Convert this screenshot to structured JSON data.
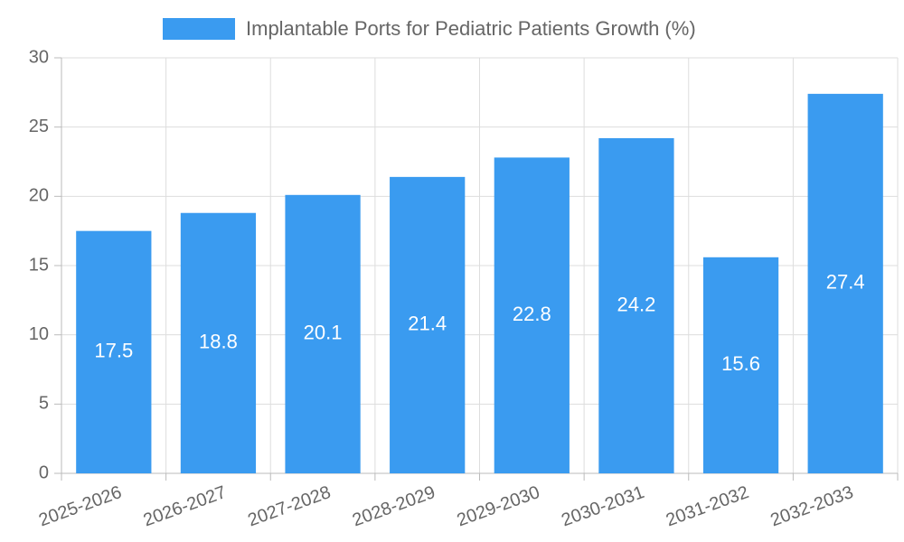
{
  "chart_data": {
    "type": "bar",
    "categories": [
      "2025-2026",
      "2026-2027",
      "2027-2028",
      "2028-2029",
      "2029-2030",
      "2030-2031",
      "2031-2032",
      "2032-2033"
    ],
    "series": [
      {
        "name": "Implantable Ports for Pediatric Patients Growth (%)",
        "values": [
          17.5,
          18.8,
          20.1,
          21.4,
          22.8,
          24.2,
          15.6,
          27.4
        ],
        "color": "#3a9bf0"
      }
    ],
    "ylim": [
      0,
      30
    ],
    "yticks": [
      0,
      5,
      10,
      15,
      20,
      25,
      30
    ],
    "grid": true,
    "legend": "top-center",
    "data_labels": true
  }
}
